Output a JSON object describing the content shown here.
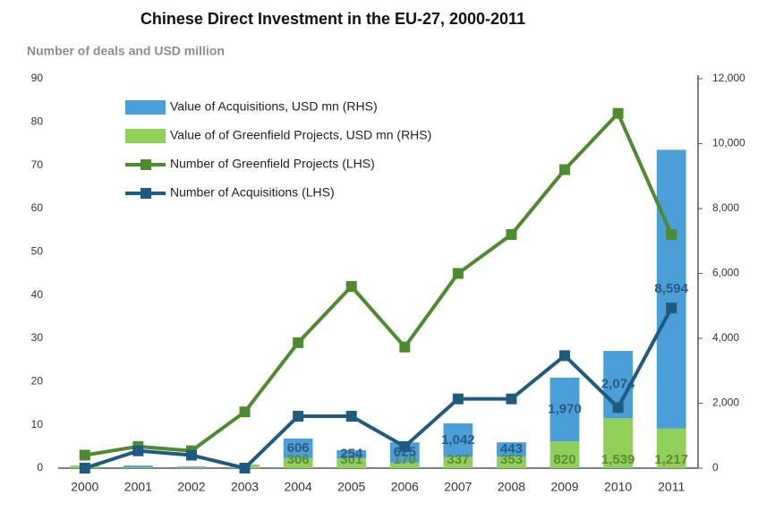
{
  "chart_data": {
    "type": "combo",
    "title": "Chinese Direct Investment in the EU-27, 2000-2011",
    "subtitle": "Number of deals and USD million",
    "categories": [
      "2000",
      "2001",
      "2002",
      "2003",
      "2004",
      "2005",
      "2006",
      "2007",
      "2008",
      "2009",
      "2010",
      "2011"
    ],
    "ylim": [
      0,
      90
    ],
    "yticks": [
      0,
      10,
      20,
      30,
      40,
      50,
      60,
      70,
      80,
      90
    ],
    "y2lim": [
      0,
      12000
    ],
    "y2ticks": [
      0,
      {
        "value": 2000,
        "label": "2,000"
      },
      {
        "value": 4000,
        "label": "4,000"
      },
      {
        "value": 6000,
        "label": "6,000"
      },
      {
        "value": 8000,
        "label": "8,000"
      },
      {
        "value": 10000,
        "label": "10,000"
      },
      {
        "value": 12000,
        "label": "12,000"
      }
    ],
    "series": [
      {
        "name": "Value of Acquisitions, USD mn (RHS)",
        "type": "bar",
        "axis": "y2",
        "color": "#4a9fd8",
        "stack_on": 1,
        "values": [
          0,
          60,
          30,
          10,
          606,
          254,
          625,
          1042,
          443,
          1970,
          2074,
          8594
        ],
        "value_labels": [
          null,
          null,
          null,
          null,
          "606",
          "254",
          "625",
          "1,042",
          "443",
          "1,970",
          "2,074",
          "8,594"
        ]
      },
      {
        "name": "Value of of Greenfield Projects, USD mn (RHS)",
        "type": "bar",
        "axis": "y2",
        "color": "#8fcf5a",
        "values": [
          80,
          20,
          20,
          100,
          306,
          301,
          170,
          337,
          353,
          820,
          1539,
          1217
        ],
        "value_labels": [
          null,
          null,
          null,
          null,
          "306",
          "301",
          "170",
          "337",
          "353",
          "820",
          "1,539",
          "1,217"
        ]
      },
      {
        "name": "Number of Greenfield Projects (LHS)",
        "type": "line",
        "color": "#4e8a2e",
        "values": [
          3,
          5,
          4,
          13,
          29,
          42,
          28,
          45,
          54,
          69,
          82,
          54
        ]
      },
      {
        "name": "Number of Acquisitions (LHS)",
        "type": "line",
        "color": "#1f5a80",
        "values": [
          0,
          4,
          3,
          0,
          12,
          12,
          5,
          16,
          16,
          26,
          14,
          37
        ]
      }
    ]
  }
}
